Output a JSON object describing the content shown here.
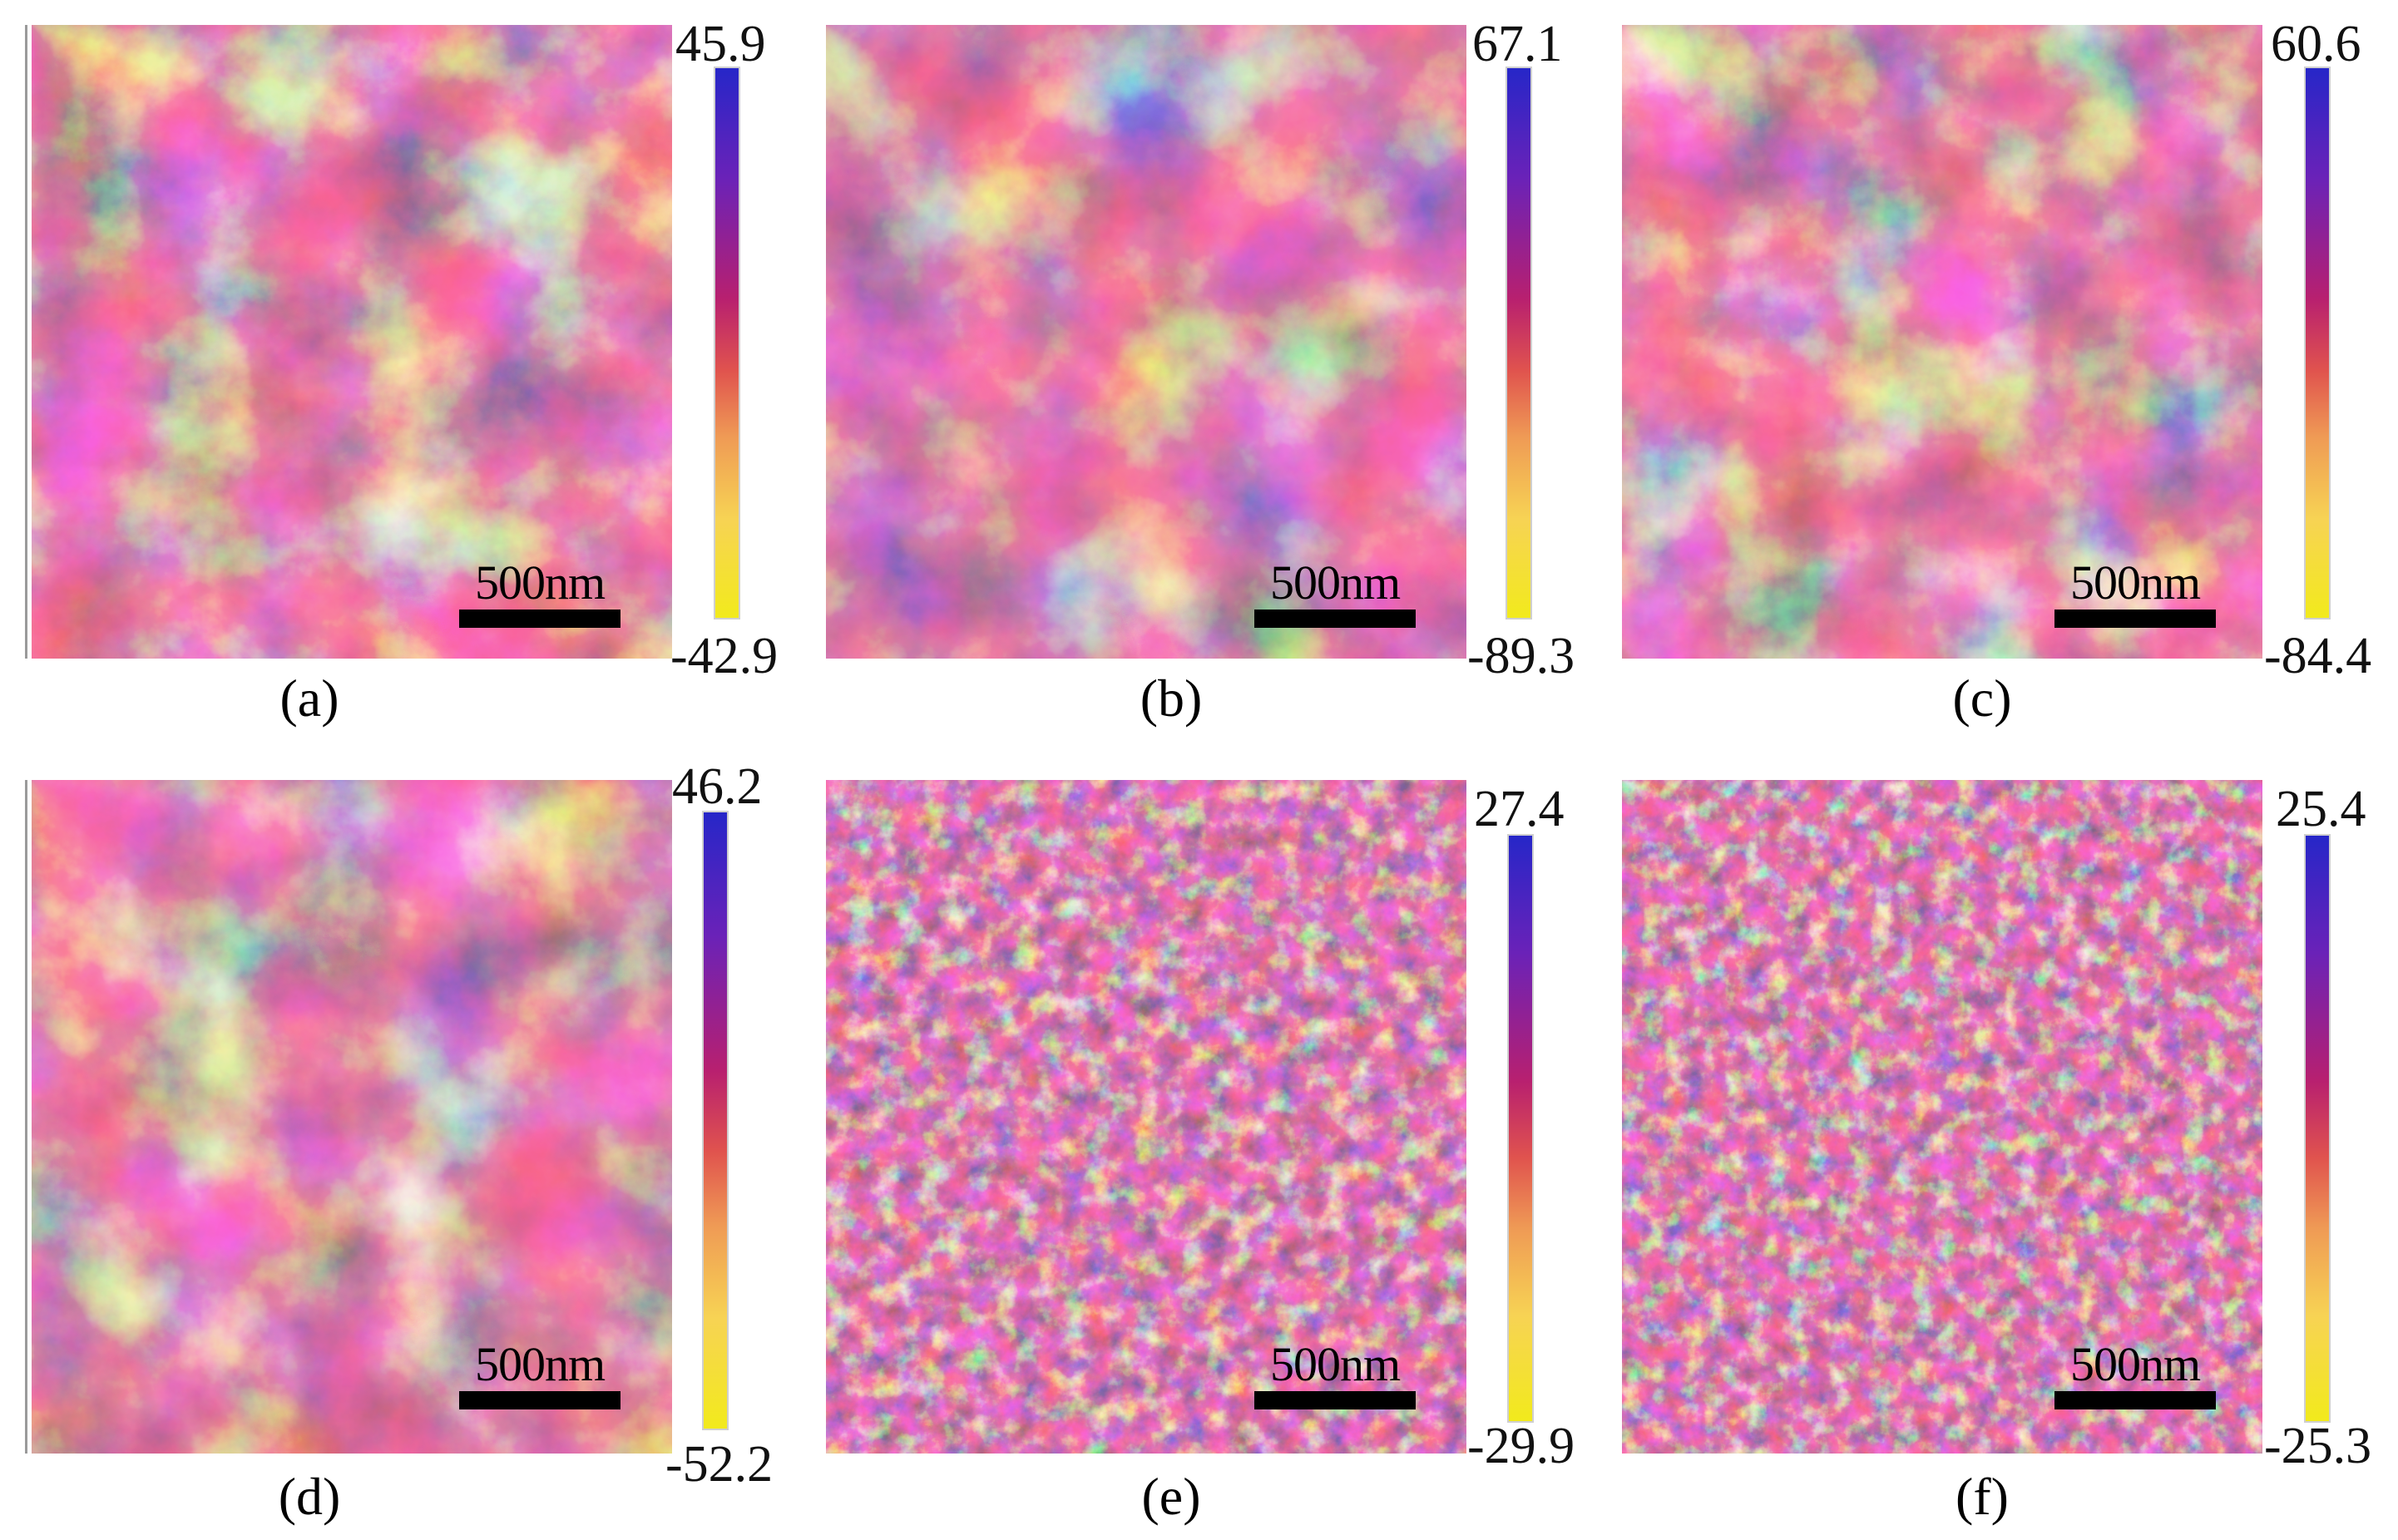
{
  "colors": {
    "low": "#f2ea1c",
    "mid": "#c0205e",
    "high": "#2b1fc7",
    "bar": "#000000"
  },
  "panels": [
    {
      "id": "a",
      "caption": "(a)",
      "scale_label": "500nm",
      "colorbar_max": "45.9",
      "colorbar_min": "-42.9"
    },
    {
      "id": "b",
      "caption": "(b)",
      "scale_label": "500nm",
      "colorbar_max": "67.1",
      "colorbar_min": "-89.3"
    },
    {
      "id": "c",
      "caption": "(c)",
      "scale_label": "500nm",
      "colorbar_max": "60.6",
      "colorbar_min": "-84.4"
    },
    {
      "id": "d",
      "caption": "(d)",
      "scale_label": "500nm",
      "colorbar_max": "46.2",
      "colorbar_min": "-52.2"
    },
    {
      "id": "e",
      "caption": "(e)",
      "scale_label": "500nm",
      "colorbar_max": "27.4",
      "colorbar_min": "-29.9"
    },
    {
      "id": "f",
      "caption": "(f)",
      "scale_label": "500nm",
      "colorbar_max": "25.4",
      "colorbar_min": "-25.3"
    }
  ]
}
